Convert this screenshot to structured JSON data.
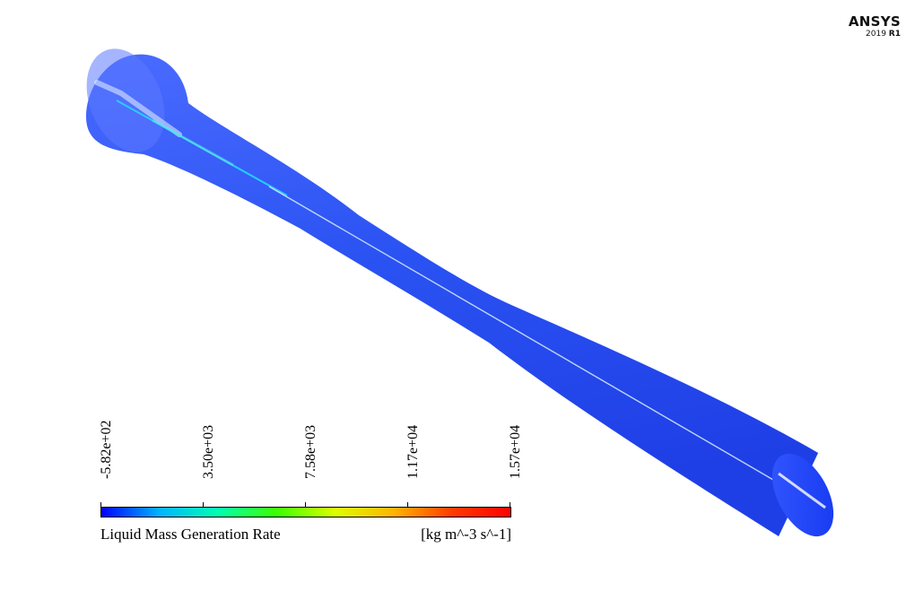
{
  "brand": {
    "name": "ANSYS",
    "version_year": "2019",
    "version_release": "R1"
  },
  "legend": {
    "title": "Liquid Mass Generation Rate",
    "units": "[kg m^-3 s^-1]",
    "ticks": [
      "-5.82e+02",
      "3.50e+03",
      "7.58e+03",
      "1.17e+04",
      "1.57e+04"
    ],
    "colormap": [
      "#0000ff",
      "#00b4ff",
      "#00ffb0",
      "#3cff00",
      "#dcff00",
      "#ffb400",
      "#ff3c00",
      "#ff0000"
    ]
  },
  "model": {
    "surface_color": "#2a52f2",
    "axis_line_color": "#cfe6ff",
    "hot_streak_color": "#25d9ff"
  }
}
